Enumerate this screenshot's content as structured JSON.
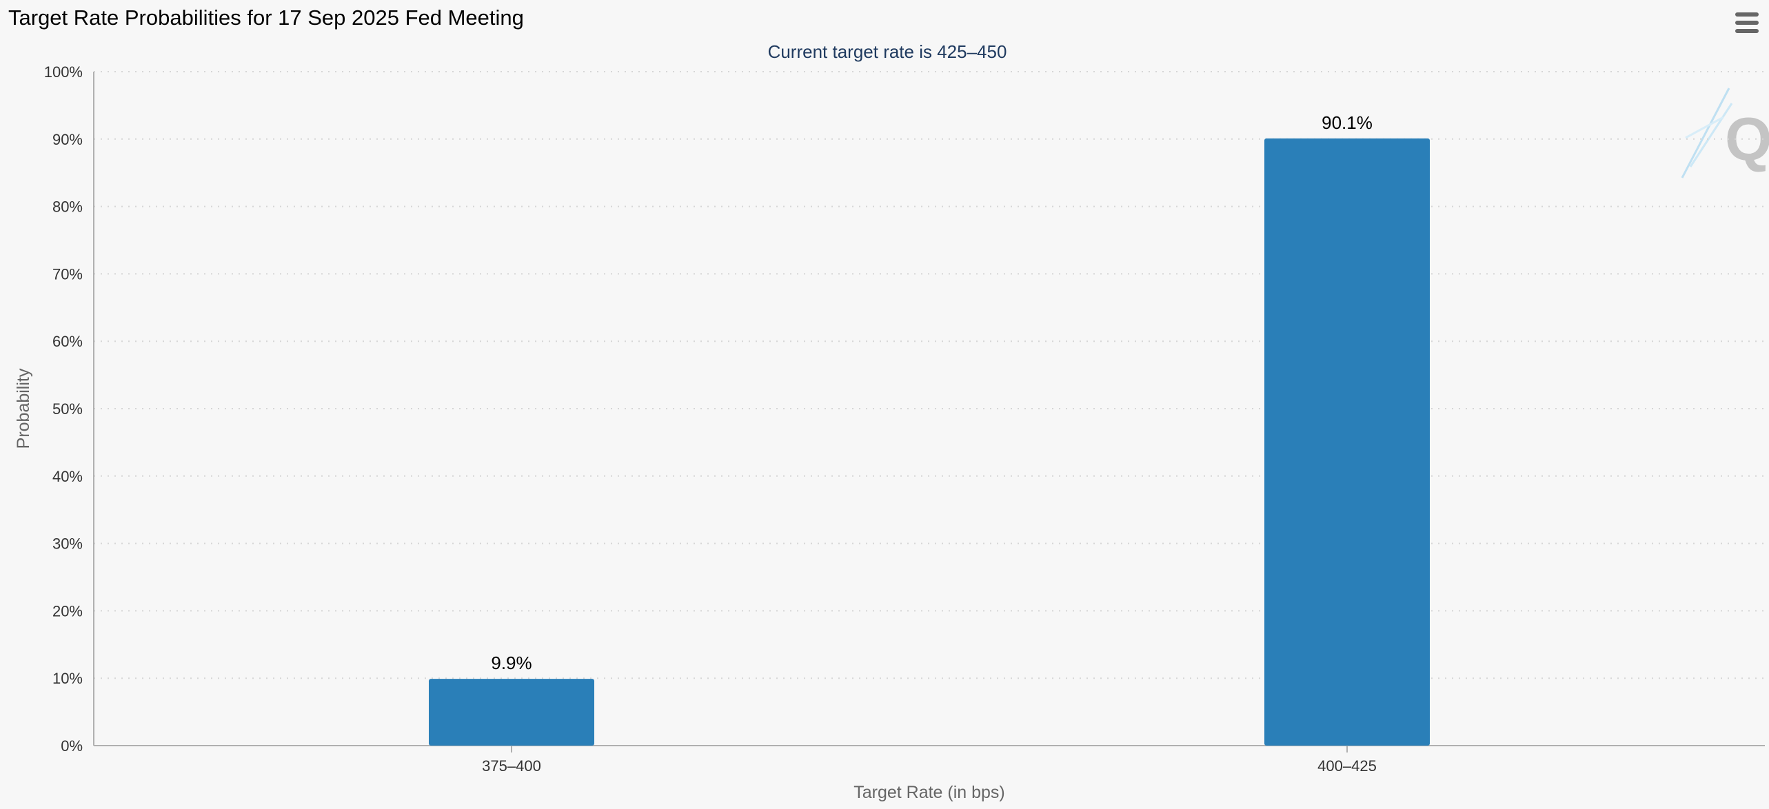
{
  "header": {
    "title": "Target Rate Probabilities for 17 Sep 2025 Fed Meeting",
    "menu_icon": "hamburger-menu-icon"
  },
  "watermark": {
    "icon": "q-logo-icon",
    "text": "Q"
  },
  "colors": {
    "bar": "#2a7fb8",
    "grid": "#d6d6d6",
    "axis": "#b0b0b0",
    "background": "#f7f7f7"
  },
  "chart_data": {
    "type": "bar",
    "title": "Target Rate Probabilities for 17 Sep 2025 Fed Meeting",
    "subtitle": "Current target rate is 425–450",
    "xlabel": "Target Rate (in bps)",
    "ylabel": "Probability",
    "categories": [
      "375–400",
      "400–425"
    ],
    "values": [
      9.9,
      90.1
    ],
    "value_labels": [
      "9.9%",
      "90.1%"
    ],
    "ylim": [
      0,
      100
    ],
    "yticks": [
      0,
      10,
      20,
      30,
      40,
      50,
      60,
      70,
      80,
      90,
      100
    ],
    "ytick_labels": [
      "0%",
      "10%",
      "20%",
      "30%",
      "40%",
      "50%",
      "60%",
      "70%",
      "80%",
      "90%",
      "100%"
    ],
    "grid": true,
    "legend": "none"
  }
}
